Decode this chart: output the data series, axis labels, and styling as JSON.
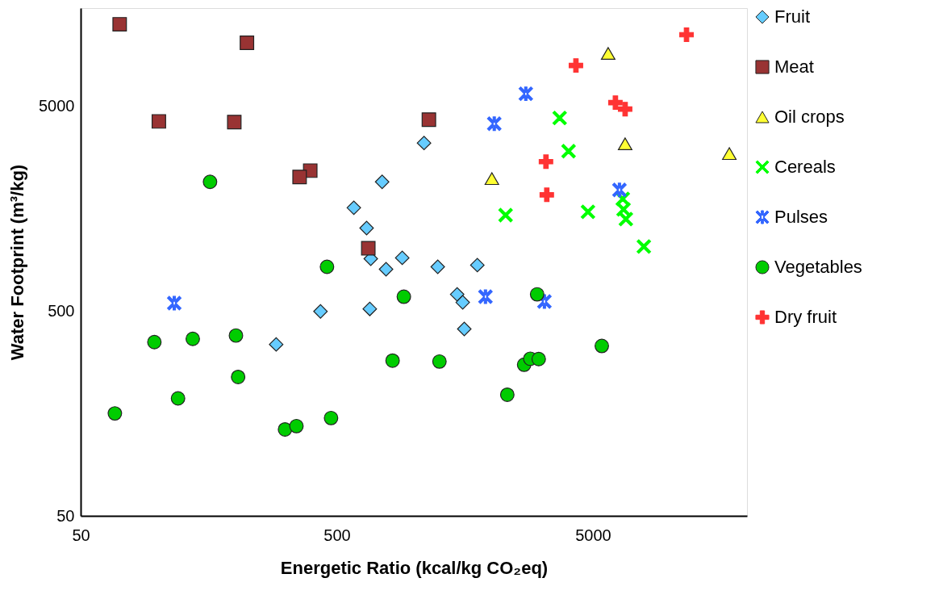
{
  "chart_data": {
    "type": "scatter",
    "xlabel": "Energetic Ratio (kcal/kg CO₂eq)",
    "ylabel": "Water Footprint (m³/kg)",
    "log": "xy",
    "xlim": [
      50,
      20000
    ],
    "ylim": [
      50,
      15000
    ],
    "xticks": [
      50,
      500,
      5000
    ],
    "yticks": [
      50,
      500,
      5000
    ],
    "grid": false,
    "legend": "right",
    "series": [
      {
        "name": "Fruit",
        "color": "#66ccff",
        "marker": "diamond",
        "x": [
          1096,
          752,
          583,
          654,
          679,
          901,
          779,
          1240,
          1770,
          673,
          1476,
          1552,
          1574,
          290,
          432
        ],
        "values": [
          3295,
          2130,
          1592,
          1268,
          898,
          907,
          798,
          820,
          836,
          511,
          602,
          550,
          408,
          343,
          497
        ]
      },
      {
        "name": "Meat",
        "color": "#993333",
        "marker": "square",
        "x": [
          71,
          223,
          101,
          199,
          394,
          358,
          664,
          1145
        ],
        "values": [
          12500,
          10160,
          4200,
          4170,
          2416,
          2250,
          1011,
          4285
        ]
      },
      {
        "name": "Oil crops",
        "color": "#ffff33",
        "marker": "triangle",
        "x": [
          5740,
          6685,
          17060,
          2017
        ],
        "values": [
          9020,
          3265,
          2925,
          2209
        ]
      },
      {
        "name": "Cereals",
        "color": "#00ff00",
        "marker": "cross",
        "x": [
          3710,
          4020,
          2282,
          4786,
          6544,
          6590,
          6730,
          7908
        ],
        "values": [
          4365,
          3006,
          1466,
          1521,
          1759,
          1563,
          1402,
          1030
        ]
      },
      {
        "name": "Pulses",
        "color": "#3366ff",
        "marker": "star",
        "x": [
          2737,
          2061,
          6352,
          1904,
          3235,
          116
        ],
        "values": [
          5730,
          4094,
          1945,
          586,
          555,
          545
        ]
      },
      {
        "name": "Vegetables",
        "color": "#00cc00",
        "marker": "circle",
        "x": [
          160,
          458,
          914,
          97,
          137,
          202,
          206,
          120,
          68,
          826,
          314,
          348,
          475,
          1259,
          3030,
          5420,
          2696,
          2850,
          3074,
          2317
        ],
        "values": [
          2130,
          820,
          586,
          352,
          365,
          379,
          238,
          187,
          158,
          286,
          132,
          137,
          150,
          283,
          602,
          337,
          273,
          292,
          291,
          195
        ]
      },
      {
        "name": "Dry fruit",
        "color": "#ff3333",
        "marker": "plus",
        "x": [
          11610,
          4295,
          6126,
          6685,
          3281,
          3305
        ],
        "values": [
          11120,
          7870,
          5185,
          4820,
          2672,
          1842
        ]
      }
    ]
  }
}
